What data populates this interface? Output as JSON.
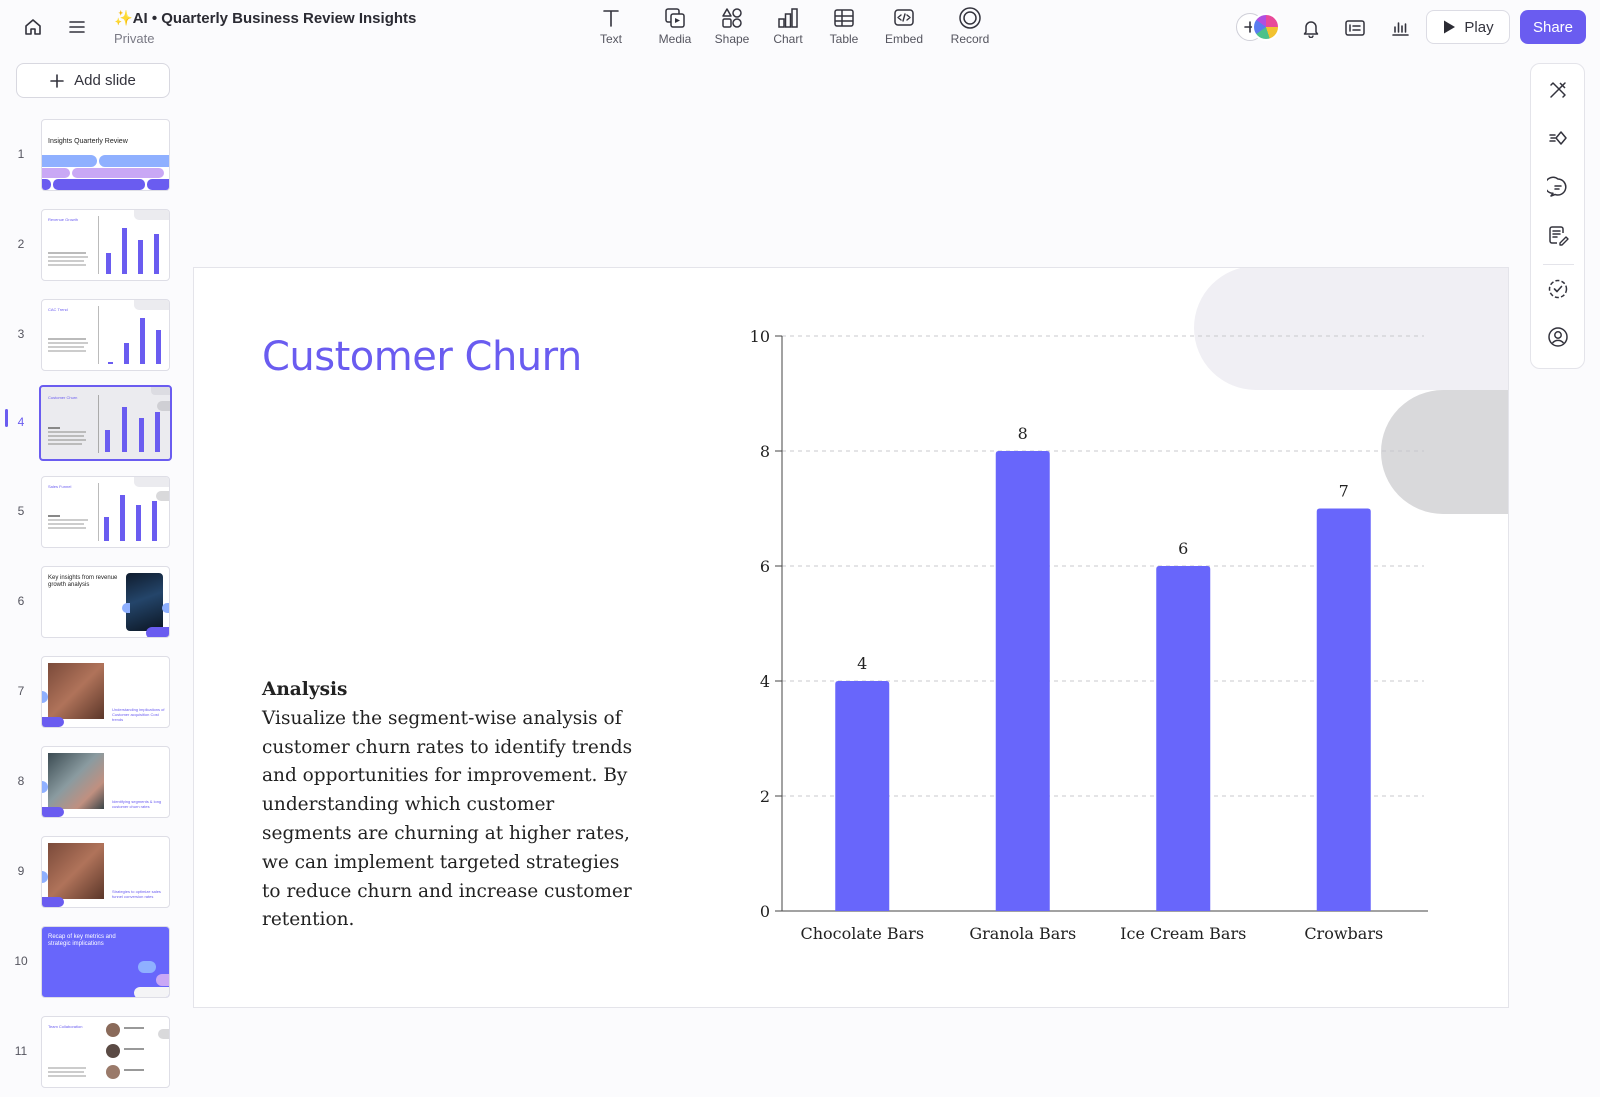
{
  "header": {
    "title": "✨AI • Quarterly Business Review Insights",
    "privacy": "Private"
  },
  "insert_toolbar": [
    {
      "label": "Text",
      "icon": "text-icon"
    },
    {
      "label": "Media",
      "icon": "media-icon"
    },
    {
      "label": "Shape",
      "icon": "shape-icon"
    },
    {
      "label": "Chart",
      "icon": "chart-icon"
    },
    {
      "label": "Table",
      "icon": "table-icon"
    },
    {
      "label": "Embed",
      "icon": "embed-icon"
    },
    {
      "label": "Record",
      "icon": "record-icon"
    }
  ],
  "actions": {
    "play_label": "Play",
    "share_label": "Share"
  },
  "sidebar": {
    "add_slide_label": "Add slide",
    "active_slide": 4,
    "slides": [
      {
        "num": "1",
        "title": "Insights Quarterly Review"
      },
      {
        "num": "2",
        "title": "Revenue Growth"
      },
      {
        "num": "3",
        "title": "CAC Trend"
      },
      {
        "num": "4",
        "title": "Customer Churn"
      },
      {
        "num": "5",
        "title": "Sales Funnel"
      },
      {
        "num": "6",
        "title": "Key insights from revenue growth analysis"
      },
      {
        "num": "7",
        "title": "Understanding implications of Customer acquisition Cost trends"
      },
      {
        "num": "8",
        "title": "Identifying segments & long customer churn rates"
      },
      {
        "num": "9",
        "title": "Strategies to optimize sales funnel conversion rates"
      },
      {
        "num": "10",
        "title": "Recap of key metrics and strategic implications"
      },
      {
        "num": "11",
        "title": "Team Collaboration"
      }
    ]
  },
  "slide": {
    "title": "Customer Churn",
    "analysis_heading": "Analysis",
    "analysis_body": "Visualize the segment-wise analysis of customer churn rates to identify trends and opportunities for improvement. By understanding which customer segments are churning at higher rates, we can implement targeted strategies to reduce churn and increase customer retention."
  },
  "colors": {
    "accent": "#6a5cf0",
    "bar": "#6866fb",
    "deco_light": "#f0eff4",
    "deco_gray": "#d9d9db"
  },
  "chart_data": {
    "type": "bar",
    "categories": [
      "Chocolate Bars",
      "Granola Bars",
      "Ice Cream Bars",
      "Crowbars"
    ],
    "values": [
      4,
      8,
      6,
      7
    ],
    "ylim": [
      0,
      10
    ],
    "yticks": [
      0,
      2,
      4,
      6,
      8,
      10
    ],
    "grid": true,
    "data_labels": true,
    "title": "",
    "xlabel": "",
    "ylabel": ""
  }
}
